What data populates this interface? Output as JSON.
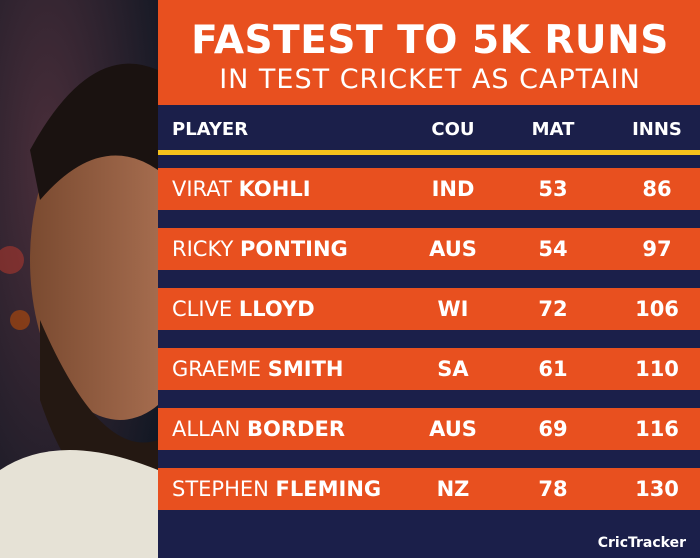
{
  "title": {
    "line1": "FASTEST TO 5K RUNS",
    "line2": "IN TEST CRICKET AS CAPTAIN"
  },
  "table": {
    "columns": [
      "PLAYER",
      "COU",
      "MAT",
      "INNS"
    ],
    "rows": [
      [
        "VIRAT",
        "KOHLI",
        "IND",
        53,
        86
      ],
      [
        "RICKY",
        "PONTING",
        "AUS",
        54,
        97
      ],
      [
        "CLIVE",
        "LLOYD",
        "WI",
        72,
        106
      ],
      [
        "GRAEME",
        "SMITH",
        "SA",
        61,
        110
      ],
      [
        "ALLAN",
        "BORDER",
        "AUS",
        69,
        116
      ],
      [
        "STEPHEN",
        "FLEMING",
        "NZ",
        78,
        130
      ]
    ]
  },
  "logo": "CricTracker"
}
